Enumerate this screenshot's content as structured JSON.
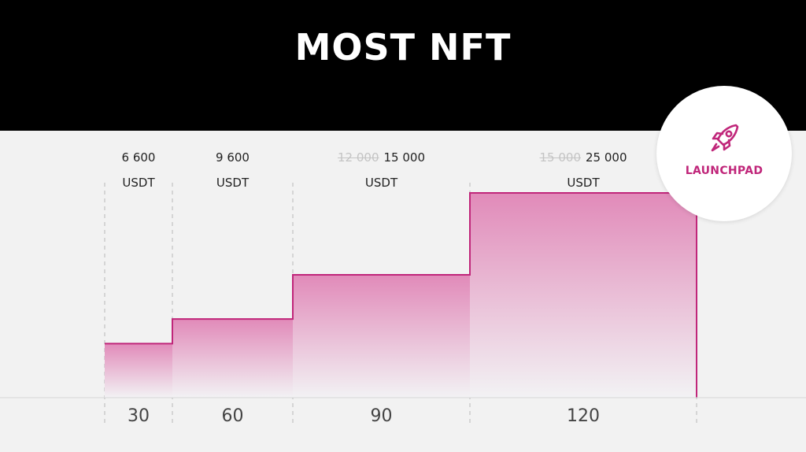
{
  "header": {
    "title": "MOST NFT"
  },
  "badge": {
    "label": "LAUNCHPAD",
    "icon": "rocket-icon",
    "color": "#c0267a"
  },
  "chart_data": {
    "type": "area",
    "step": true,
    "title": "MOST NFT",
    "xlabel": "",
    "ylabel": "",
    "ticks": [
      "30",
      "60",
      "90",
      "120"
    ],
    "values": [
      6600,
      9600,
      15000,
      25000
    ],
    "unit": "USDT",
    "tiers": [
      {
        "old_price": "",
        "price": "6 600",
        "unit": "USDT",
        "tick": "30"
      },
      {
        "old_price": "",
        "price": "9 600",
        "unit": "USDT",
        "tick": "60"
      },
      {
        "old_price": "12 000",
        "price": "15 000",
        "unit": "USDT",
        "tick": "90"
      },
      {
        "old_price": "15 000",
        "price": "25 000",
        "unit": "USDT",
        "tick": "120"
      }
    ],
    "line_color": "#c0267a",
    "fill_top_color": "#e18ab9",
    "fill_bottom_color": "#f2f2f4",
    "grid": false
  }
}
